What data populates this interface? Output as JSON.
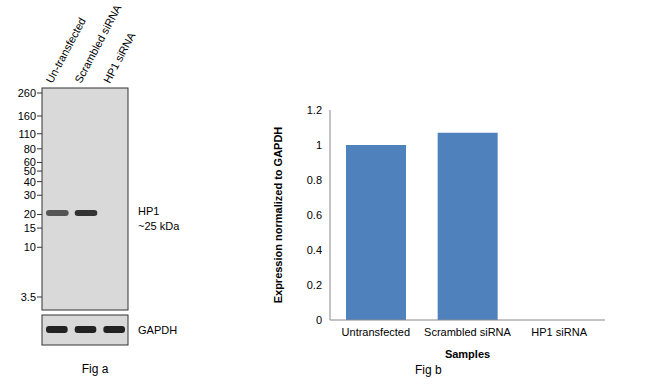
{
  "blot": {
    "lanes": [
      "Un-transfected",
      "Scrambled siRNA",
      "HP1 siRNA"
    ],
    "markers": [
      260,
      160,
      110,
      80,
      60,
      50,
      40,
      30,
      20,
      15,
      10,
      3.5
    ],
    "band_label": "HP1",
    "band_size": "~25 kDa",
    "hp1_band_present": [
      true,
      true,
      false
    ],
    "loading_control": "GAPDH",
    "caption": "Fig a"
  },
  "chart_data": {
    "type": "bar",
    "caption": "Fig b",
    "x_label": "Samples",
    "y_label": "Expression normalized to GAPDH",
    "categories": [
      "Untransfected",
      "Scrambled siRNA",
      "HP1 siRNA"
    ],
    "values": [
      1,
      1.07,
      0
    ],
    "color": "#4f81bd",
    "ylim": [
      0,
      1.2
    ],
    "yticks": [
      0,
      0.2,
      0.4,
      0.6,
      0.8,
      1,
      1.2
    ],
    "grid": false
  }
}
